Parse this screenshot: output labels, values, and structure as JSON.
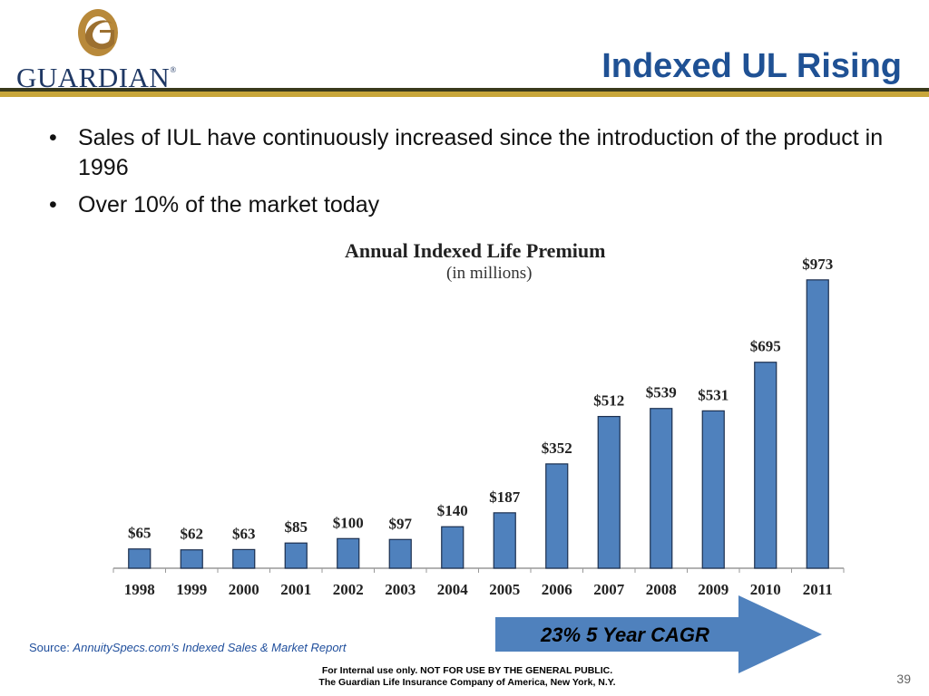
{
  "brand": {
    "name": "GUARDIAN",
    "registered_mark": "®",
    "gold": "#b8893a",
    "navy": "#1f3864"
  },
  "slide": {
    "title": "Indexed UL Rising",
    "page_number": "39"
  },
  "bullets": [
    {
      "text": "Sales of IUL have continuously increased since the introduction of the product in 1996"
    },
    {
      "text": "Over 10% of the market today"
    }
  ],
  "chart_data": {
    "type": "bar",
    "title": "Annual Indexed Life Premium",
    "subtitle": "(in millions)",
    "categories": [
      "1998",
      "1999",
      "2000",
      "2001",
      "2002",
      "2003",
      "2004",
      "2005",
      "2006",
      "2007",
      "2008",
      "2009",
      "2010",
      "2011"
    ],
    "values": [
      65,
      62,
      63,
      85,
      100,
      97,
      140,
      187,
      352,
      512,
      539,
      531,
      695,
      973
    ],
    "data_labels": [
      "$65",
      "$62",
      "$63",
      "$85",
      "$100",
      "$97",
      "$140",
      "$187",
      "$352",
      "$512",
      "$539",
      "$531",
      "$695",
      "$973"
    ],
    "xlabel": "",
    "ylabel": "",
    "ylim": [
      0,
      1000
    ],
    "bar_color": "#4f81bd",
    "grid": false,
    "legend": "none"
  },
  "callout": {
    "text": "23% 5 Year CAGR",
    "color": "#4f81bd"
  },
  "source": {
    "prefix": "Source: ",
    "text": "AnnuitySpecs.com’s Indexed Sales & Market Report"
  },
  "footer": {
    "line1": "For Internal  use only.  NOT FOR USE BY THE GENERAL PUBLIC.",
    "line2": "The Guardian Life Insurance Company of America, New York, N.Y."
  }
}
